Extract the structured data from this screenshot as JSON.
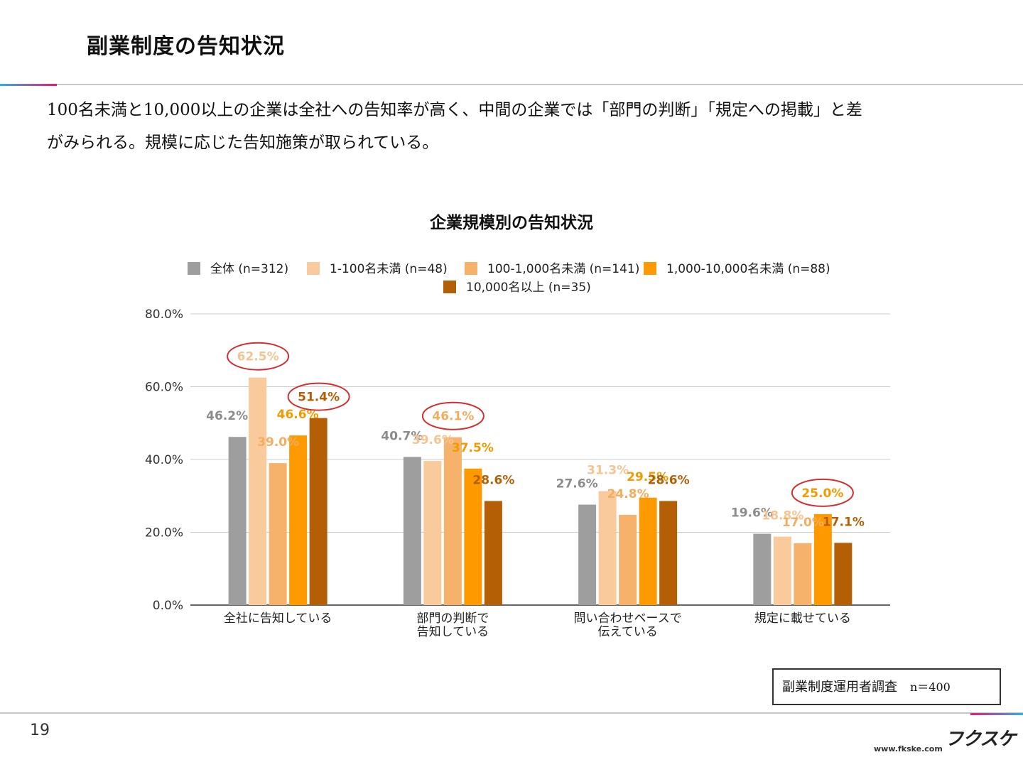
{
  "slide": {
    "title": "副業制度の告知状況",
    "lead_line1": "100名未満と10,000以上の企業は全社への告知率が高く、中間の企業では「部門の判断」「規定への掲載」と差",
    "lead_line2": "がみられる。規模に応じた告知施策が取られている。",
    "source_label": "副業制度運用者調査",
    "source_n": "n＝400",
    "page_number": "19",
    "logo_text": "フクスケ",
    "url": "www.fkske.com",
    "accent_colors": [
      "#2bb1e8",
      "#e8197a"
    ]
  },
  "chart_data": {
    "type": "bar",
    "title": "企業規模別の告知状況",
    "xlabel": "",
    "ylabel": "",
    "ylim": [
      0,
      80
    ],
    "y_ticks": [
      "0.0%",
      "20.0%",
      "40.0%",
      "60.0%",
      "80.0%"
    ],
    "grid": true,
    "legend_position": "top",
    "categories": [
      [
        "全社に告知している"
      ],
      [
        "部門の判断で",
        "告知している"
      ],
      [
        "問い合わせベースで",
        "伝えている"
      ],
      [
        "規定に載せている"
      ]
    ],
    "series": [
      {
        "name": "全体 (n=312)",
        "color": "#9e9e9e",
        "label_color": "#8c8c8c",
        "values": [
          46.2,
          40.7,
          27.6,
          19.6
        ],
        "labels": [
          "46.2%",
          "40.7%",
          "27.6%",
          "19.6%"
        ]
      },
      {
        "name": "1-100名未満 (n=48)",
        "color": "#f9cb9c",
        "label_color": "#f6c493",
        "values": [
          62.5,
          39.6,
          31.3,
          18.8
        ],
        "labels": [
          "62.5%",
          "39.6%",
          "31.3%",
          "18.8%"
        ]
      },
      {
        "name": "100-1,000名未満 (n=141)",
        "color": "#f6b26b",
        "label_color": "#f4ad60",
        "values": [
          39.0,
          46.1,
          24.8,
          17.0
        ],
        "labels": [
          "39.0%",
          "46.1%",
          "24.8%",
          "17.0%"
        ]
      },
      {
        "name": "1,000-10,000名未満 (n=88)",
        "color": "#ff9900",
        "label_color": "#f39a00",
        "values": [
          46.6,
          37.5,
          29.5,
          25.0
        ],
        "labels": [
          "46.6%",
          "37.5%",
          "29.5%",
          "25.0%"
        ]
      },
      {
        "name": "10,000名以上 (n=35)",
        "color": "#b45f06",
        "label_color": "#b45f06",
        "values": [
          51.4,
          28.6,
          28.6,
          17.1
        ],
        "labels": [
          "51.4%",
          "28.6%",
          "28.6%",
          "17.1%"
        ]
      }
    ],
    "highlight_circles": [
      {
        "category": 0,
        "series": 1,
        "color": "#d32f2f"
      },
      {
        "category": 0,
        "series": 4,
        "color": "#d32f2f"
      },
      {
        "category": 1,
        "series": 2,
        "color": "#d32f2f"
      },
      {
        "category": 3,
        "series": 3,
        "color": "#d32f2f"
      }
    ]
  }
}
